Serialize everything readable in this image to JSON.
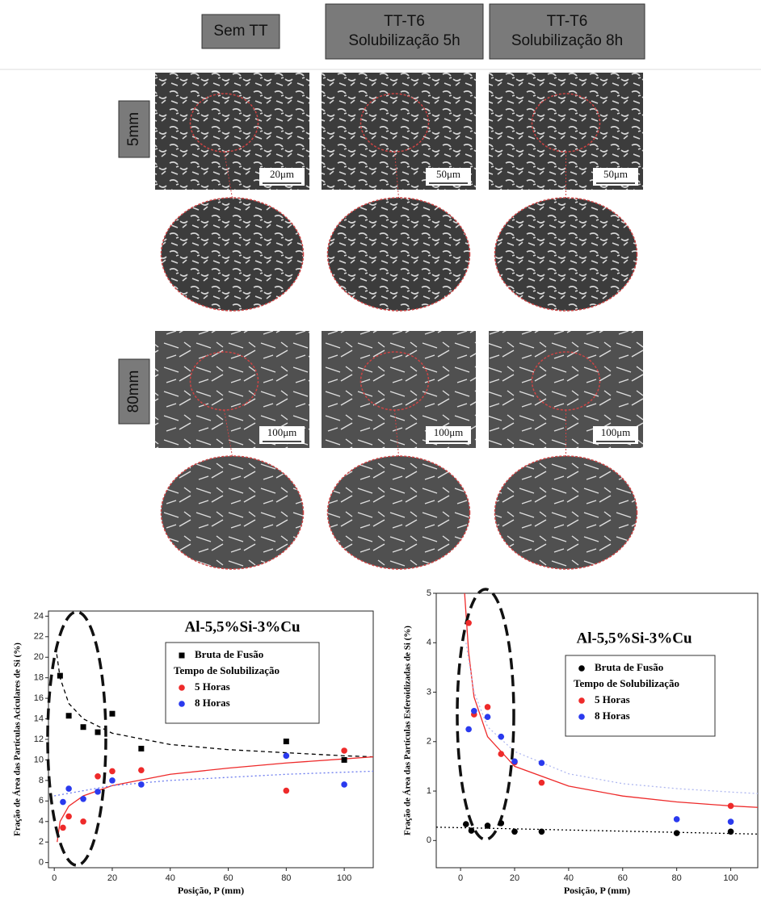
{
  "figure": {
    "columns": [
      [
        "Sem TT"
      ],
      [
        "TT-T6",
        "Solubilização 5h"
      ],
      [
        "TT-T6",
        "Solubilização 8h"
      ]
    ],
    "rows": [
      "5mm",
      "80mm"
    ],
    "scale_bars": [
      [
        "20μm",
        "50μm",
        "50μm"
      ],
      [
        "100μm",
        "100μm",
        "100μm"
      ]
    ]
  },
  "chart_data": [
    {
      "type": "scatter",
      "title": "Al-5,5%Si-3%Cu",
      "x_label": "Posição, P (mm)",
      "y_label": "Fração de Área das Partículas Aciculares de Si (%)",
      "legend_heading": "Tempo de Solubilização",
      "xlim": [
        -2,
        110
      ],
      "ylim": [
        -0.5,
        24.5
      ],
      "xticks": [
        0,
        20,
        40,
        60,
        80,
        100
      ],
      "yticks": [
        0,
        2,
        4,
        6,
        8,
        10,
        12,
        14,
        16,
        18,
        20,
        22,
        24
      ],
      "series": [
        {
          "name": "Bruta de Fusão",
          "color": "#000000",
          "marker": "square",
          "x": [
            2,
            5,
            10,
            15,
            20,
            30,
            80,
            100
          ],
          "values": [
            18.2,
            14.3,
            13.2,
            12.7,
            14.5,
            11.1,
            11.8,
            10.0
          ]
        },
        {
          "name": "5 Horas",
          "color": "#ee2a2a",
          "marker": "circle",
          "x": [
            3,
            5,
            10,
            15,
            20,
            30,
            80,
            100
          ],
          "values": [
            3.4,
            4.5,
            4.0,
            8.4,
            8.9,
            9.0,
            7.0,
            10.9
          ]
        },
        {
          "name": "8 Horas",
          "color": "#2a3aee",
          "marker": "circle",
          "x": [
            3,
            5,
            10,
            15,
            20,
            30,
            80,
            100
          ],
          "values": [
            5.9,
            7.2,
            6.2,
            6.9,
            8.0,
            7.6,
            10.4,
            7.6
          ]
        }
      ],
      "trends": [
        {
          "color": "#000000",
          "style": "dashed",
          "x": [
            0.5,
            2,
            5,
            10,
            20,
            40,
            60,
            80,
            100,
            110
          ],
          "values": [
            21,
            18,
            15.5,
            14,
            12.6,
            11.5,
            11,
            10.7,
            10.4,
            10.3
          ]
        },
        {
          "color": "#ee2a2a",
          "style": "solid",
          "x": [
            1,
            2,
            5,
            10,
            20,
            40,
            60,
            80,
            100,
            110
          ],
          "values": [
            2,
            4,
            5.5,
            6.5,
            7.5,
            8.6,
            9.2,
            9.7,
            10.1,
            10.3
          ]
        },
        {
          "color": "#6a7aee",
          "style": "dotted",
          "x": [
            0,
            20,
            40,
            60,
            80,
            100,
            110
          ],
          "values": [
            6.5,
            7.5,
            8,
            8.3,
            8.6,
            8.8,
            8.9
          ]
        }
      ]
    },
    {
      "type": "scatter",
      "title": "Al-5,5%Si-3%Cu",
      "x_label": "Posição, P (mm)",
      "y_label": "Fração de Área das Partículas Esferoidizadas de Si (%)",
      "legend_heading": "Tempo de Solubilização",
      "xlim": [
        -9,
        110
      ],
      "ylim": [
        -0.55,
        5
      ],
      "xticks": [
        0,
        20,
        40,
        60,
        80,
        100
      ],
      "yticks": [
        0,
        1,
        2,
        3,
        4,
        5
      ],
      "series": [
        {
          "name": "Bruta de Fusão",
          "color": "#000000",
          "marker": "circle",
          "x": [
            2,
            4,
            10,
            15,
            20,
            30,
            80,
            100
          ],
          "values": [
            0.33,
            0.2,
            0.3,
            0.35,
            0.18,
            0.18,
            0.15,
            0.18
          ]
        },
        {
          "name": "5 Horas",
          "color": "#ee2a2a",
          "marker": "circle",
          "x": [
            3,
            5,
            10,
            15,
            20,
            30,
            100
          ],
          "values": [
            4.4,
            2.55,
            2.7,
            1.75,
            1.58,
            1.17,
            0.7
          ]
        },
        {
          "name": "8 Horas",
          "color": "#2a3aee",
          "marker": "circle",
          "x": [
            3,
            5,
            10,
            15,
            20,
            30,
            80,
            100
          ],
          "values": [
            2.25,
            2.62,
            2.5,
            2.1,
            1.6,
            1.57,
            0.43,
            0.38
          ]
        }
      ],
      "trends": [
        {
          "color": "#ee2a2a",
          "style": "solid",
          "x": [
            1.5,
            3,
            5,
            10,
            20,
            40,
            60,
            80,
            100,
            110
          ],
          "values": [
            5,
            3.8,
            2.9,
            2.1,
            1.5,
            1.1,
            0.9,
            0.78,
            0.7,
            0.67
          ]
        },
        {
          "color": "#b0b8f0",
          "style": "dotted",
          "x": [
            2,
            5,
            10,
            20,
            40,
            60,
            80,
            100,
            110
          ],
          "values": [
            4,
            3,
            2.3,
            1.8,
            1.35,
            1.15,
            1.05,
            0.98,
            0.95
          ]
        },
        {
          "color": "#000000",
          "style": "dotted",
          "x": [
            -9,
            110
          ],
          "values": [
            0.27,
            0.13
          ]
        }
      ]
    }
  ]
}
